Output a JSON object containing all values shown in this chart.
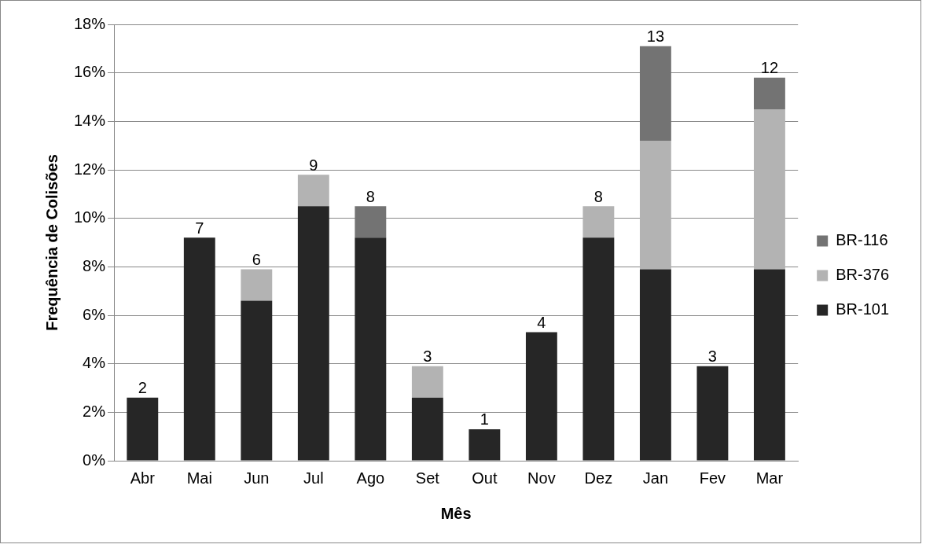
{
  "chart_data": {
    "type": "bar",
    "xlabel": "Mês",
    "ylabel": "Frequência de Colisões",
    "categories": [
      "Abr",
      "Mai",
      "Jun",
      "Jul",
      "Ago",
      "Set",
      "Out",
      "Nov",
      "Dez",
      "Jan",
      "Fev",
      "Mar"
    ],
    "stacked": true,
    "series": [
      {
        "name": "BR-101",
        "color": "#262626",
        "values": [
          2.6,
          9.2,
          6.6,
          10.5,
          9.2,
          2.6,
          1.3,
          5.3,
          9.2,
          7.9,
          3.9,
          7.9
        ]
      },
      {
        "name": "BR-376",
        "color": "#b3b3b3",
        "values": [
          null,
          null,
          1.3,
          1.3,
          null,
          1.3,
          null,
          null,
          1.3,
          5.3,
          null,
          6.6
        ]
      },
      {
        "name": "BR-116",
        "color": "#737373",
        "values": [
          null,
          null,
          null,
          null,
          1.3,
          null,
          null,
          null,
          null,
          3.9,
          null,
          1.3
        ]
      }
    ],
    "annotations": [
      {
        "text": "2",
        "x": "Abr",
        "y": 2.6
      },
      {
        "text": "7",
        "x": "Mai",
        "y": 9.2
      },
      {
        "text": "6",
        "x": "Jun",
        "y": 7.9
      },
      {
        "text": "9",
        "x": "Jul",
        "y": 11.8
      },
      {
        "text": "8",
        "x": "Ago",
        "y": 10.5
      },
      {
        "text": "3",
        "x": "Set",
        "y": 3.9
      },
      {
        "text": "1",
        "x": "Out",
        "y": 1.3
      },
      {
        "text": "4",
        "x": "Nov",
        "y": 5.3
      },
      {
        "text": "8",
        "x": "Dez",
        "y": 10.5
      },
      {
        "text": "13",
        "x": "Jan",
        "y": 17.1
      },
      {
        "text": "3",
        "x": "Fev",
        "y": 3.9
      },
      {
        "text": "12",
        "x": "Mar",
        "y": 15.8
      }
    ],
    "ylim": [
      0,
      18
    ],
    "yticks": [
      {
        "value": 0,
        "label": "0%"
      },
      {
        "value": 2,
        "label": "2%"
      },
      {
        "value": 4,
        "label": "4%"
      },
      {
        "value": 6,
        "label": "6%"
      },
      {
        "value": 8,
        "label": "8%"
      },
      {
        "value": 10,
        "label": "10%"
      },
      {
        "value": 12,
        "label": "12%"
      },
      {
        "value": 14,
        "label": "14%"
      },
      {
        "value": 16,
        "label": "16%"
      },
      {
        "value": 18,
        "label": "18%"
      }
    ],
    "grid": "y",
    "legend": "right"
  }
}
